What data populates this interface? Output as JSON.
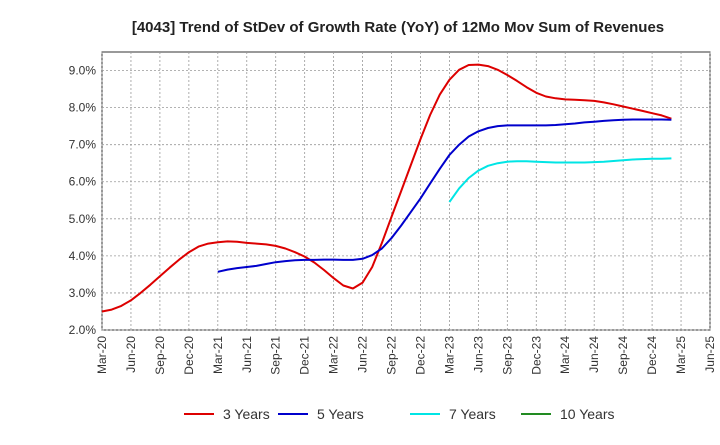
{
  "chart_data": {
    "type": "line",
    "title": "[4043]  Trend of StDev of Growth Rate (YoY) of 12Mo Mov Sum of Revenues",
    "xlabel": "",
    "ylabel": "",
    "ylim": [
      2.0,
      9.5
    ],
    "grid": true,
    "legend_position": "bottom",
    "x_ticks": [
      "Mar-20",
      "Jun-20",
      "Sep-20",
      "Dec-20",
      "Mar-21",
      "Jun-21",
      "Sep-21",
      "Dec-21",
      "Mar-22",
      "Jun-22",
      "Sep-22",
      "Dec-22",
      "Mar-23",
      "Jun-23",
      "Sep-23",
      "Dec-23",
      "Mar-24",
      "Jun-24",
      "Sep-24",
      "Dec-24",
      "Mar-25",
      "Jun-25"
    ],
    "y_ticks": [
      {
        "value": 2.0,
        "label": "2.0%"
      },
      {
        "value": 3.0,
        "label": "3.0%"
      },
      {
        "value": 4.0,
        "label": "4.0%"
      },
      {
        "value": 5.0,
        "label": "5.0%"
      },
      {
        "value": 6.0,
        "label": "6.0%"
      },
      {
        "value": 7.0,
        "label": "7.0%"
      },
      {
        "value": 8.0,
        "label": "8.0%"
      },
      {
        "value": 9.0,
        "label": "9.0%"
      }
    ],
    "series": [
      {
        "name": "3 Years",
        "color": "#dd0000",
        "start_index": 0,
        "values": [
          2.5,
          2.55,
          2.65,
          2.8,
          3.0,
          3.22,
          3.45,
          3.68,
          3.9,
          4.1,
          4.25,
          4.33,
          4.37,
          4.39,
          4.38,
          4.35,
          4.33,
          4.31,
          4.27,
          4.2,
          4.1,
          3.98,
          3.82,
          3.62,
          3.4,
          3.2,
          3.12,
          3.28,
          3.7,
          4.35,
          5.05,
          5.75,
          6.45,
          7.15,
          7.8,
          8.35,
          8.75,
          9.02,
          9.15,
          9.16,
          9.12,
          9.02,
          8.88,
          8.72,
          8.55,
          8.4,
          8.3,
          8.25,
          8.22,
          8.21,
          8.2,
          8.18,
          8.14,
          8.09,
          8.03,
          7.97,
          7.91,
          7.85,
          7.79,
          7.7
        ]
      },
      {
        "name": "5 Years",
        "color": "#0000cc",
        "start_index": 12,
        "values": [
          3.57,
          3.63,
          3.67,
          3.7,
          3.73,
          3.78,
          3.83,
          3.86,
          3.88,
          3.89,
          3.89,
          3.9,
          3.9,
          3.89,
          3.89,
          3.92,
          4.02,
          4.2,
          4.48,
          4.82,
          5.18,
          5.55,
          5.95,
          6.35,
          6.72,
          7.0,
          7.22,
          7.36,
          7.45,
          7.5,
          7.52,
          7.52,
          7.52,
          7.52,
          7.52,
          7.53,
          7.55,
          7.57,
          7.6,
          7.62,
          7.64,
          7.66,
          7.67,
          7.68,
          7.68,
          7.68,
          7.68,
          7.67
        ]
      },
      {
        "name": "7 Years",
        "color": "#00e5e5",
        "start_index": 36,
        "values": [
          5.45,
          5.82,
          6.1,
          6.3,
          6.43,
          6.5,
          6.54,
          6.55,
          6.55,
          6.54,
          6.53,
          6.52,
          6.52,
          6.52,
          6.52,
          6.53,
          6.54,
          6.56,
          6.58,
          6.6,
          6.61,
          6.62,
          6.62,
          6.63
        ]
      },
      {
        "name": "10 Years",
        "color": "#228b22",
        "start_index": 0,
        "values": []
      }
    ]
  }
}
